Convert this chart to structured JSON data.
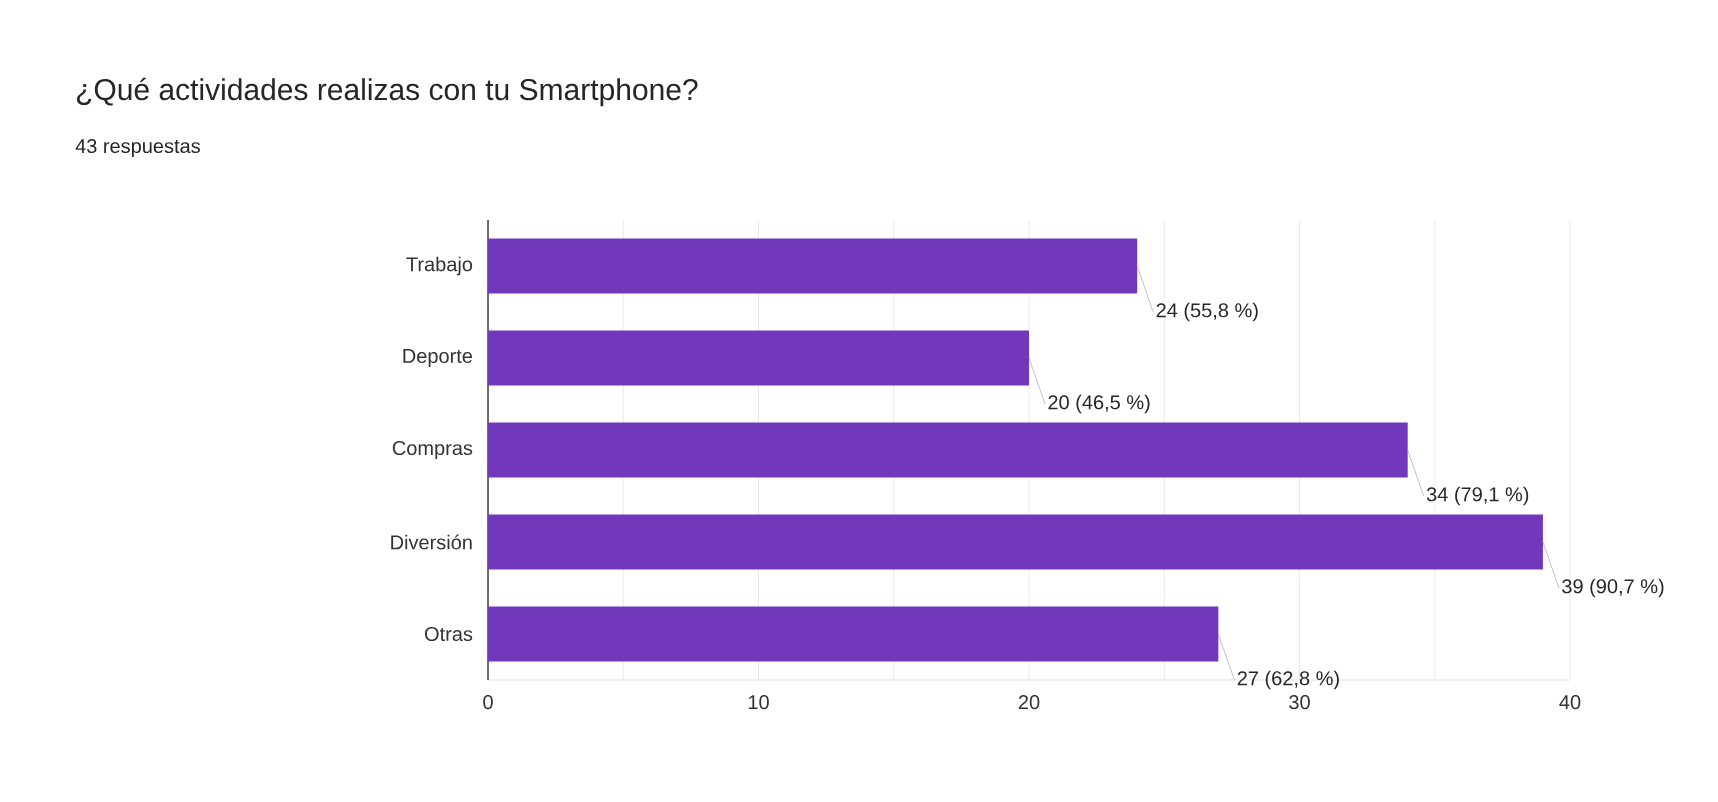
{
  "chart_data": {
    "type": "bar",
    "orientation": "horizontal",
    "title": "¿Qué actividades realizas con tu Smartphone?",
    "subtitle": "43 respuestas",
    "categories": [
      "Trabajo",
      "Deporte",
      "Compras",
      "Diversión",
      "Otras"
    ],
    "values": [
      24,
      20,
      34,
      39,
      27
    ],
    "value_labels": [
      "24 (55,8 %)",
      "20 (46,5 %)",
      "34 (79,1 %)",
      "39 (90,7 %)",
      "27 (62,8 %)"
    ],
    "color": "#7138bb",
    "xlim": [
      0,
      40
    ],
    "xticks": [
      0,
      {
        "value": 5,
        "label": null
      },
      10,
      {
        "value": 15,
        "label": null
      },
      20,
      {
        "value": 25,
        "label": null
      },
      30,
      {
        "value": 35,
        "label": null
      },
      40
    ],
    "grid": "x"
  }
}
